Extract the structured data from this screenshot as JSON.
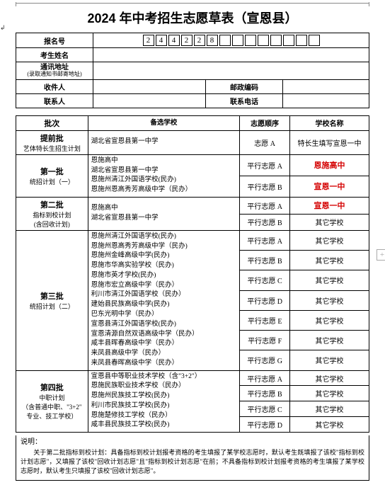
{
  "title": "2024 年中考招生志愿草表（宣恩县）",
  "anchor_glyph": "↲",
  "side_glyph": "+",
  "header_rows": {
    "reg_label": "报名号",
    "reg_digits": [
      "2",
      "4",
      "4",
      "2",
      "2",
      "8",
      "",
      "",
      "",
      "",
      "",
      "",
      "",
      ""
    ],
    "name_label": "考生姓名",
    "addr_label": "通讯地址",
    "addr_sub": "(录取通知书邮寄地址)",
    "recipient_label": "收件人",
    "postcode_label": "邮政编码",
    "contact_label": "联系人",
    "phone_label": "联系电话"
  },
  "table_headers": [
    "批次",
    "备选学校",
    "志愿顺序",
    "学校名称"
  ],
  "rows": [
    {
      "batch": {
        "main": "提前批",
        "sub": "艺体特长生招生计划"
      },
      "schools": [
        "湖北省宣恩县第一中学"
      ],
      "orders": [
        {
          "o": "志愿 A",
          "name": "特长生填写宣恩一中"
        }
      ]
    },
    {
      "batch": {
        "main": "第一批",
        "sub": "统招计划（一）"
      },
      "schools": [
        "恩施高中",
        "湖北省宣恩县第一中学",
        "恩施州清江外国语学校(民办)",
        "恩施州恩高秀芳高级中学（民办）"
      ],
      "orders": [
        {
          "o": "平行志愿 A",
          "name": "恩施高中",
          "red": true
        },
        {
          "o": "平行志愿 B",
          "name": "宣恩一中",
          "red": true
        }
      ]
    },
    {
      "batch": {
        "main": "第二批",
        "sub": "指标到校计划\n(含回收计划)"
      },
      "schools": [
        "恩施高中",
        "湖北省宣恩县第一中学"
      ],
      "orders": [
        {
          "o": "平行志愿 A",
          "name": "宣恩一中",
          "red": true
        },
        {
          "o": "平行志愿 B",
          "name": "其它学校"
        }
      ]
    },
    {
      "batch": {
        "main": "第三批",
        "sub": "统招计划（二）"
      },
      "schools": [
        "恩施州清江外国语学校(民办)",
        "恩施州恩高秀芳高级中学（民办)",
        "恩施州金峰高级中学(民办)",
        "恩施市华高实验学校（民办)",
        "恩施市英才学校(民办)",
        "恩施市宏立高级中学（民办）",
        "利川市清江外国语学校（民办）",
        "建始县民族高级中学(民办)",
        "巴东光明中学（民办）",
        "宣恩县清江外国语学校(民办)",
        "宣恩清源自然双语高级中学（民办）",
        "咸丰县晖春高级中学（民办）",
        "来凤县高级中学（民办）",
        "来凤县春晖高级中学（民办）"
      ],
      "orders": [
        {
          "o": "平行志愿 A",
          "name": "其它学校"
        },
        {
          "o": "平行志愿 B",
          "name": "其它学校"
        },
        {
          "o": "平行志愿 C",
          "name": "其它学校"
        },
        {
          "o": "平行志愿 D",
          "name": "其它学校"
        },
        {
          "o": "平行志愿 E",
          "name": "其它学校"
        },
        {
          "o": "平行志愿 F",
          "name": "其它学校"
        },
        {
          "o": "平行志愿 G",
          "name": "其它学校"
        }
      ]
    },
    {
      "batch": {
        "main": "第四批",
        "sub": "中职计划\n（含普通中职、\"3+2\"\n专业、技工学校）"
      },
      "schools": [
        "宣恩县中等职业技术学校（含\"3+2\"）",
        "恩施民族职业技术学校（民办）",
        "恩施州民族技工学校(民办)",
        "利川市民族技工学校(民办)",
        "恩施楚修技工学校（民办）",
        "咸丰县民族技工学校(民办)"
      ],
      "orders": [
        {
          "o": "平行志愿 A",
          "name": "其它学校"
        },
        {
          "o": "平行志愿 B",
          "name": "其它学校"
        },
        {
          "o": "平行志愿 C",
          "name": "其它学校"
        },
        {
          "o": "平行志愿 D",
          "name": "其它学校"
        }
      ]
    }
  ],
  "note_title": "说明：",
  "note_body": "　　关于第二批指标到校计划：具备指标到校计划报考资格的考生填报了某学校志愿时，默认考生既填报了该校\"指标到校计划志愿\"，又填报了该校\"回收计划志愿\"且\"指标到校计划志愿\"在前；不具备指标到校计划报考资格的考生填报了某学校志愿时，默认考生只填报了该校\"回收计划志愿\"。"
}
